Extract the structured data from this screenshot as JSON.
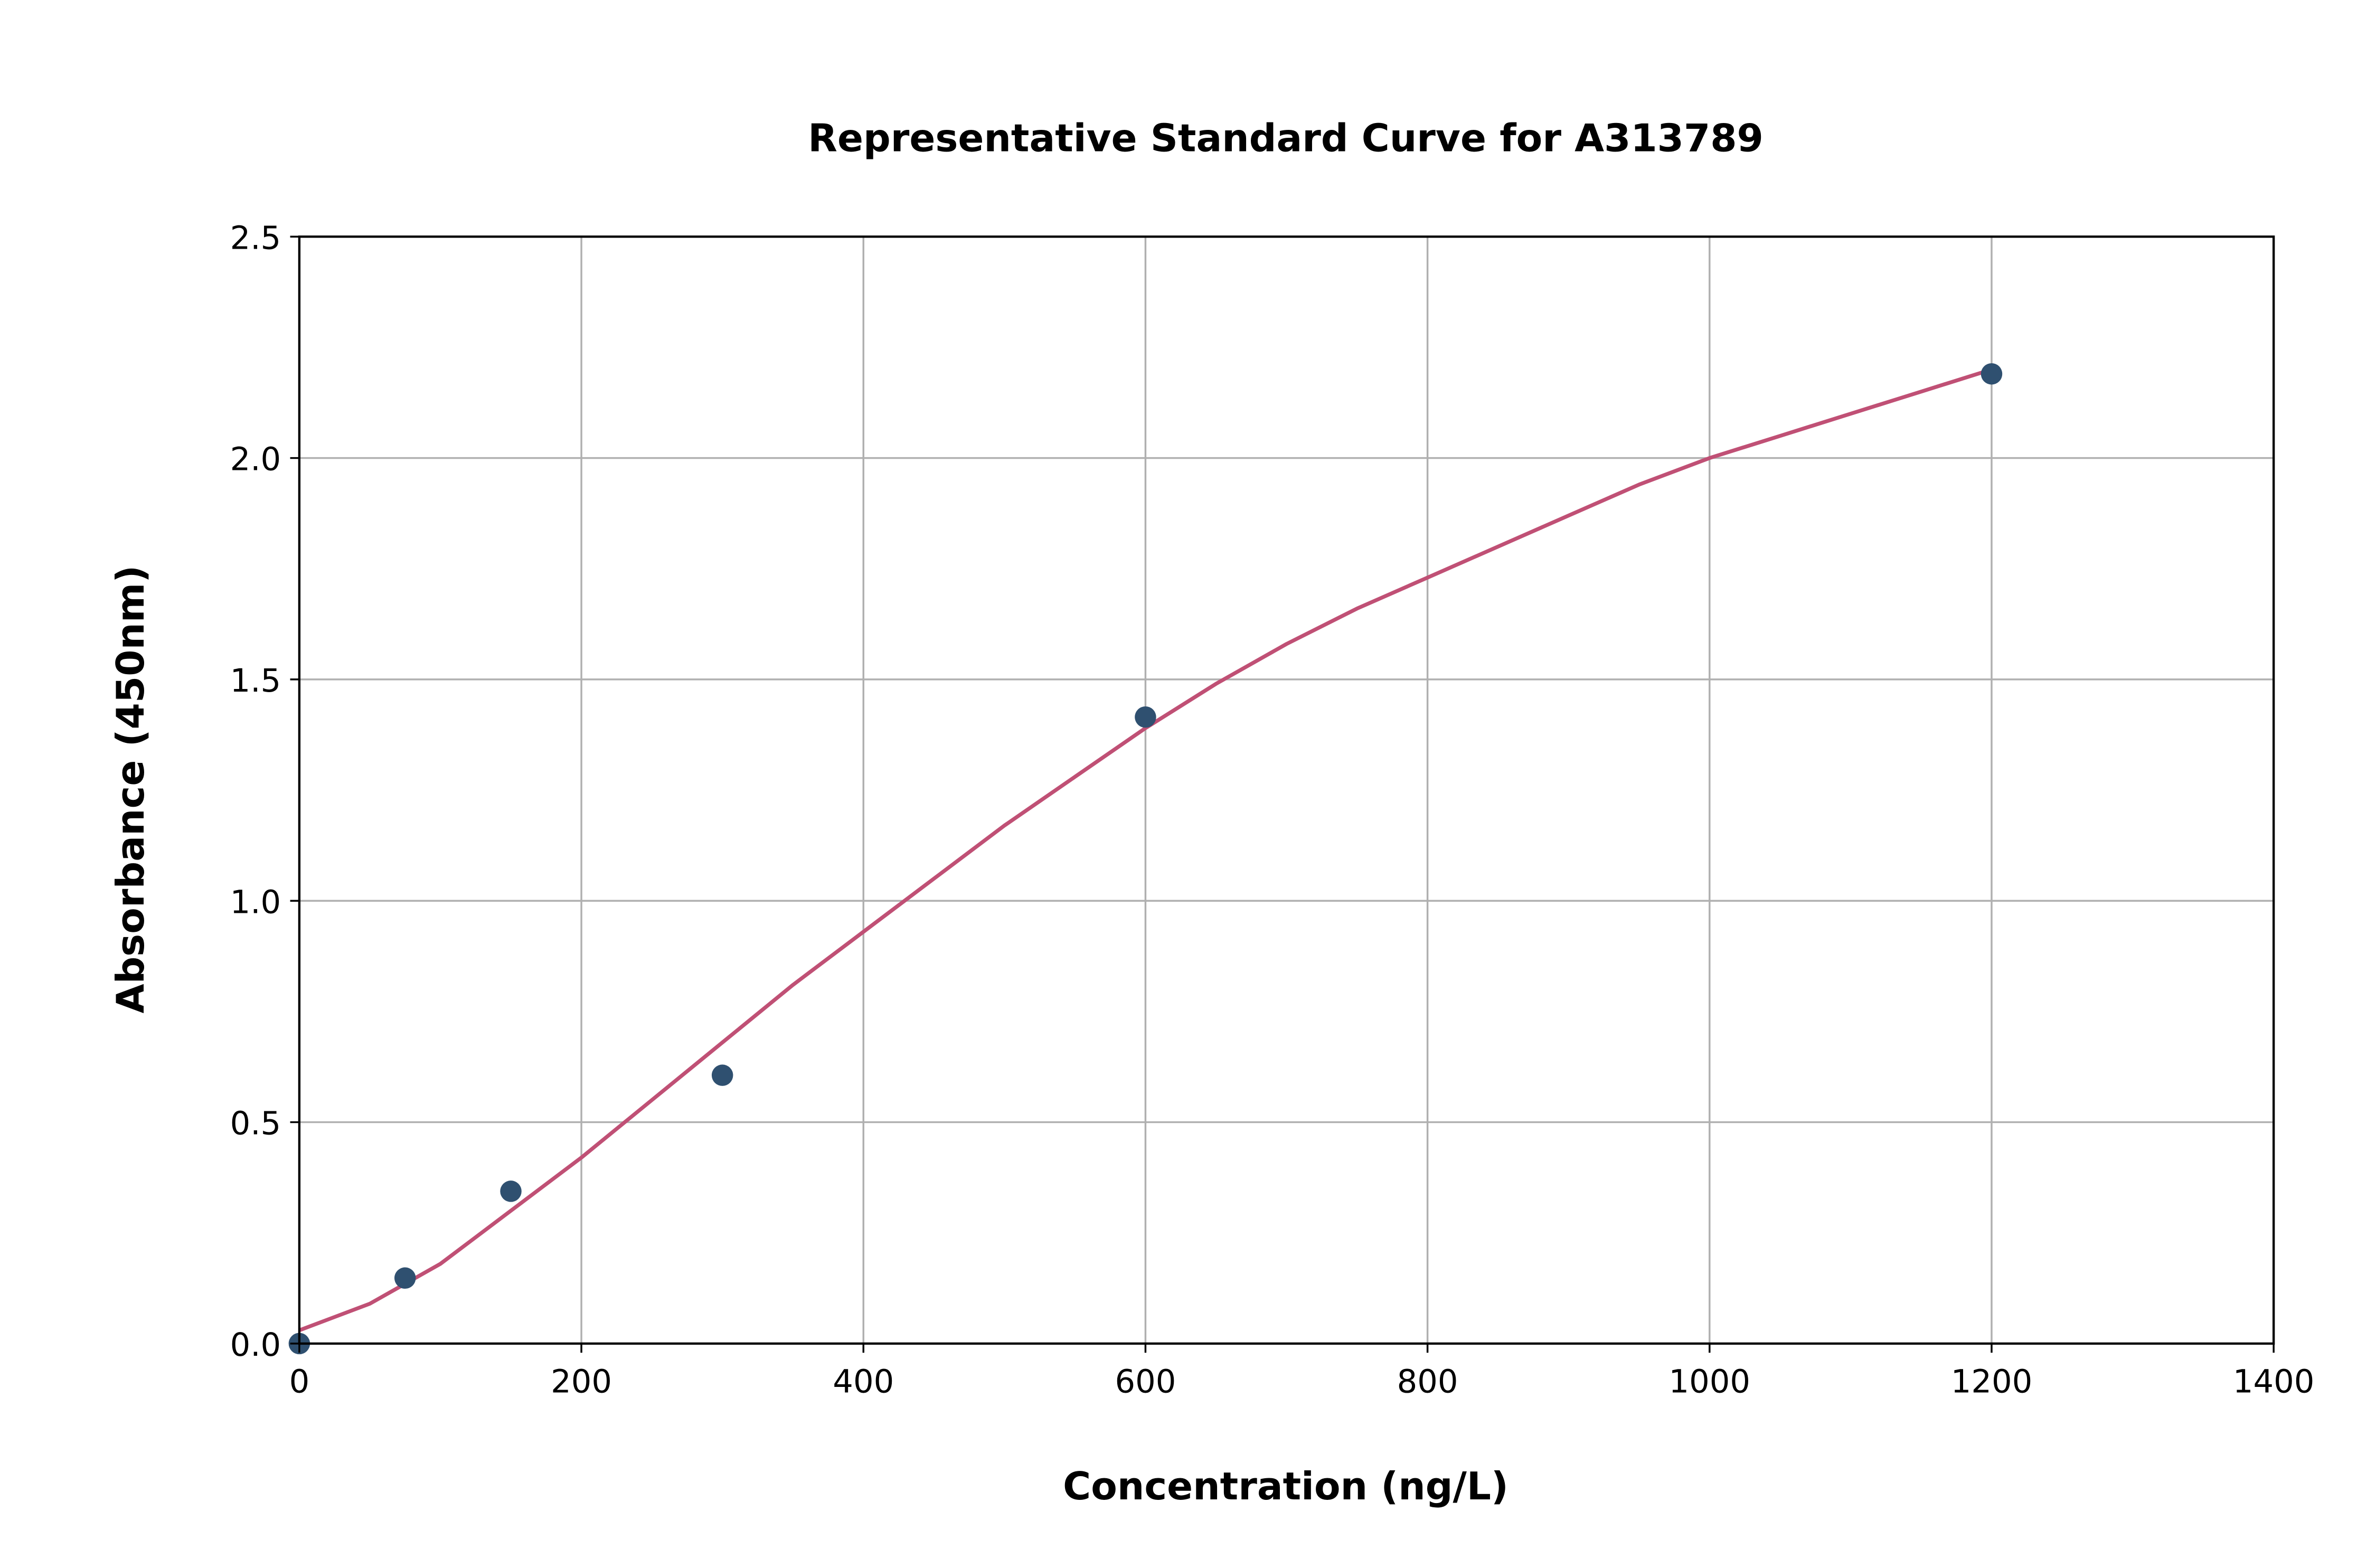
{
  "chart_data": {
    "type": "scatter",
    "title": "Representative Standard Curve for A313789",
    "xlabel": "Concentration (ng/L)",
    "ylabel": "Absorbance (450nm)",
    "xlim": [
      0,
      1400
    ],
    "ylim": [
      0,
      2.5
    ],
    "xticks": [
      "0",
      "200",
      "400",
      "600",
      "800",
      "1000",
      "1200",
      "1400"
    ],
    "yticks": [
      "0.0",
      "0.5",
      "1.0",
      "1.5",
      "2.0",
      "2.5"
    ],
    "grid": true,
    "points": {
      "x": [
        0,
        75,
        150,
        300,
        600,
        1200
      ],
      "y": [
        0.0,
        0.148,
        0.344,
        0.606,
        1.415,
        2.19
      ],
      "color": "#2f5070"
    },
    "fit_curve": {
      "x": [
        0,
        50,
        100,
        150,
        200,
        250,
        300,
        350,
        400,
        450,
        500,
        550,
        600,
        650,
        700,
        750,
        800,
        850,
        900,
        950,
        1000,
        1050,
        1100,
        1150,
        1200
      ],
      "y": [
        0.03,
        0.09,
        0.18,
        0.3,
        0.42,
        0.55,
        0.68,
        0.81,
        0.93,
        1.05,
        1.17,
        1.28,
        1.39,
        1.49,
        1.58,
        1.66,
        1.73,
        1.8,
        1.87,
        1.94,
        2.0,
        2.05,
        2.1,
        2.15,
        2.2
      ],
      "color": "#c05075"
    }
  }
}
